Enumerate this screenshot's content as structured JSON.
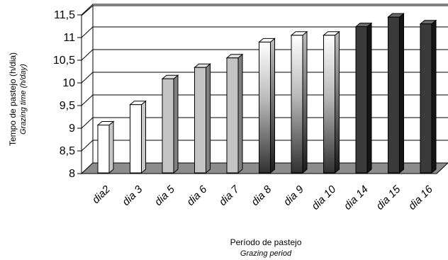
{
  "chart_data": {
    "type": "bar",
    "style": "3d-column",
    "categories": [
      "dia2",
      "dia 3",
      "dia 5",
      "dia 6",
      "dia 7",
      "dia 8",
      "dia 9",
      "dia 10",
      "dia 14",
      "dia 15",
      "dia 16"
    ],
    "values": [
      9.0,
      9.45,
      10.02,
      10.27,
      10.48,
      10.83,
      10.98,
      10.98,
      11.17,
      11.38,
      11.23
    ],
    "ylim": [
      8,
      11.5
    ],
    "yticks": [
      "8",
      "8,5",
      "9",
      "9,5",
      "10",
      "10,5",
      "11",
      "11,5"
    ],
    "ylabel": "Tempo de pastejo (h/dia)",
    "ylabel_en": "Grazing time (h/day)",
    "xlabel": "Período de pastejo",
    "xlabel_en": "Grazing period",
    "grid": true,
    "legend": "none",
    "fill_styles": [
      "white",
      "white",
      "light-gray",
      "light-gray",
      "light-gray",
      "white-to-dark-gradient",
      "white-to-dark-gradient",
      "white-to-dark-gradient",
      "dark",
      "dark",
      "dark"
    ],
    "colors": {
      "light_gray": "#c4c4c4",
      "dark": "#3a3a3a",
      "floor": "#8c8c8c",
      "wall": "#ffffff"
    }
  }
}
